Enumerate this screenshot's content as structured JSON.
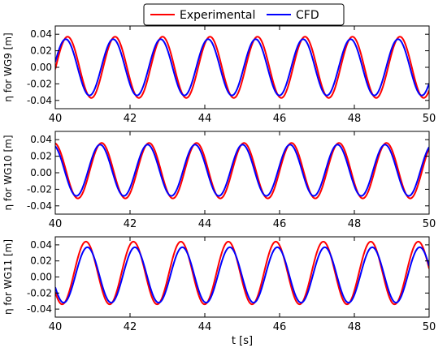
{
  "legend": {
    "placement": "top-center",
    "entries": [
      {
        "label": "Experimental",
        "color": "#ff0000"
      },
      {
        "label": "CFD",
        "color": "#0000ff"
      }
    ]
  },
  "xlabel": "t [s]",
  "chart_data": [
    {
      "type": "line",
      "ylabel": "η for WG9 [m]",
      "xlim": [
        40,
        50
      ],
      "ylim": [
        -0.05,
        0.05
      ],
      "x_ticks": [
        "40",
        "42",
        "44",
        "46",
        "48",
        "50"
      ],
      "y_ticks": [
        "-0.04",
        "-0.02",
        "0.00",
        "0.02",
        "0.04"
      ],
      "grid": false,
      "period_s": 1.27,
      "series": [
        {
          "name": "Experimental",
          "color": "#ff0000",
          "crest": 0.037,
          "trough": -0.037,
          "first_crest_t": 40.33
        },
        {
          "name": "CFD",
          "color": "#0000ff",
          "crest": 0.034,
          "trough": -0.034,
          "first_crest_t": 40.28
        }
      ]
    },
    {
      "type": "line",
      "ylabel": "η for WG10 [m]",
      "xlim": [
        40,
        50
      ],
      "ylim": [
        -0.05,
        0.05
      ],
      "x_ticks": [
        "40",
        "42",
        "44",
        "46",
        "48",
        "50"
      ],
      "y_ticks": [
        "-0.04",
        "-0.02",
        "0.00",
        "0.02",
        "0.04"
      ],
      "grid": false,
      "period_s": 1.27,
      "series": [
        {
          "name": "Experimental",
          "color": "#ff0000",
          "crest": 0.036,
          "trough": -0.031,
          "first_crest_t": 39.97
        },
        {
          "name": "CFD",
          "color": "#0000ff",
          "crest": 0.034,
          "trough": -0.028,
          "first_crest_t": 39.93
        }
      ]
    },
    {
      "type": "line",
      "ylabel": "η for WG11 [m]",
      "xlim": [
        40,
        50
      ],
      "ylim": [
        -0.05,
        0.05
      ],
      "x_ticks": [
        "40",
        "42",
        "44",
        "46",
        "48",
        "50"
      ],
      "y_ticks": [
        "-0.04",
        "-0.02",
        "0.00",
        "0.02",
        "0.04"
      ],
      "grid": false,
      "period_s": 1.27,
      "series": [
        {
          "name": "Experimental",
          "color": "#ff0000",
          "crest": 0.044,
          "trough": -0.034,
          "first_crest_t": 40.82
        },
        {
          "name": "CFD",
          "color": "#0000ff",
          "crest": 0.037,
          "trough": -0.032,
          "first_crest_t": 40.86
        }
      ]
    }
  ]
}
